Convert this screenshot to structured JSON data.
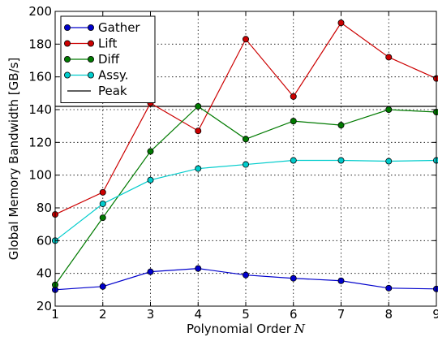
{
  "chart_data": {
    "type": "line",
    "xlabel": "Polynomial Order",
    "xlabel_var": "N",
    "ylabel": "Global Memory Bandwidth [GB/s]",
    "x": [
      1,
      2,
      3,
      4,
      5,
      6,
      7,
      8,
      9
    ],
    "xlim": [
      1,
      9
    ],
    "ylim": [
      20,
      200
    ],
    "xticks": [
      "1",
      "2",
      "3",
      "4",
      "5",
      "6",
      "7",
      "8",
      "9"
    ],
    "yticks": [
      "20",
      "40",
      "60",
      "80",
      "100",
      "120",
      "140",
      "160",
      "180",
      "200"
    ],
    "grid": true,
    "legend_position": "top-left",
    "series": [
      {
        "name": "Gather",
        "color": "#0000cc",
        "values": [
          30,
          32,
          41,
          43,
          39,
          37,
          35.5,
          31,
          30.5
        ]
      },
      {
        "name": "Lift",
        "color": "#cc0000",
        "values": [
          76,
          89.5,
          144,
          127,
          183,
          148,
          193,
          172,
          159
        ]
      },
      {
        "name": "Diff",
        "color": "#007a00",
        "values": [
          33,
          74,
          114.5,
          142,
          122,
          133,
          130.5,
          140,
          138.5
        ]
      },
      {
        "name": "Assy.",
        "color": "#00cccc",
        "values": [
          60,
          82.5,
          97,
          104,
          106.5,
          109,
          109,
          108.5,
          109
        ]
      }
    ],
    "reference_lines": [
      {
        "name": "Peak",
        "color": "#000000",
        "value": 142
      }
    ]
  }
}
